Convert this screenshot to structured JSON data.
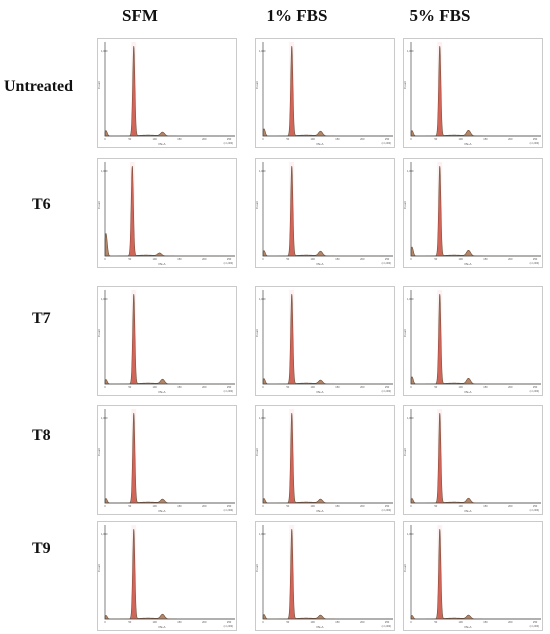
{
  "columns": [
    "SFM",
    "1% FBS",
    "5% FBS"
  ],
  "rows": [
    "Untreated",
    "T6",
    "T7",
    "T8",
    "T9"
  ],
  "axis_text": {
    "y_label": "Count",
    "x_label": "PE-A",
    "x_max_label": "(x 1,000)",
    "x_ticks": [
      "0",
      "50",
      "100",
      "150",
      "200",
      "250"
    ],
    "y_top_label": "1,000"
  },
  "colors": {
    "peak": "#b2876a",
    "peak_edge": "#6e4a35",
    "gate": "#e84b4b",
    "frame": "#4a4a4a"
  },
  "chart_data": {
    "type": "area",
    "title": "",
    "xlabel": "PE-A",
    "ylabel": "Count",
    "xlim": [
      0,
      262
    ],
    "panels": [
      {
        "row": "Untreated",
        "column": "SFM",
        "g1_position": 58,
        "g1_height": 1.0,
        "g2_height": 0.04,
        "debris": 0.06
      },
      {
        "row": "Untreated",
        "column": "1% FBS",
        "g1_position": 58,
        "g1_height": 1.0,
        "g2_height": 0.05,
        "debris": 0.08
      },
      {
        "row": "Untreated",
        "column": "5% FBS",
        "g1_position": 58,
        "g1_height": 1.0,
        "g2_height": 0.06,
        "debris": 0.06
      },
      {
        "row": "T6",
        "column": "SFM",
        "g1_position": 55,
        "g1_height": 1.0,
        "g2_height": 0.03,
        "debris": 0.25
      },
      {
        "row": "T6",
        "column": "1% FBS",
        "g1_position": 58,
        "g1_height": 1.0,
        "g2_height": 0.05,
        "debris": 0.06
      },
      {
        "row": "T6",
        "column": "5% FBS",
        "g1_position": 58,
        "g1_height": 1.0,
        "g2_height": 0.06,
        "debris": 0.1
      },
      {
        "row": "T7",
        "column": "SFM",
        "g1_position": 58,
        "g1_height": 1.0,
        "g2_height": 0.05,
        "debris": 0.05
      },
      {
        "row": "T7",
        "column": "1% FBS",
        "g1_position": 58,
        "g1_height": 1.0,
        "g2_height": 0.04,
        "debris": 0.06
      },
      {
        "row": "T7",
        "column": "5% FBS",
        "g1_position": 58,
        "g1_height": 1.0,
        "g2_height": 0.06,
        "debris": 0.08
      },
      {
        "row": "T8",
        "column": "SFM",
        "g1_position": 58,
        "g1_height": 1.0,
        "g2_height": 0.04,
        "debris": 0.05
      },
      {
        "row": "T8",
        "column": "1% FBS",
        "g1_position": 58,
        "g1_height": 1.0,
        "g2_height": 0.04,
        "debris": 0.05
      },
      {
        "row": "T8",
        "column": "5% FBS",
        "g1_position": 58,
        "g1_height": 1.0,
        "g2_height": 0.05,
        "debris": 0.05
      },
      {
        "row": "T9",
        "column": "SFM",
        "g1_position": 58,
        "g1_height": 1.0,
        "g2_height": 0.05,
        "debris": 0.04
      },
      {
        "row": "T9",
        "column": "1% FBS",
        "g1_position": 58,
        "g1_height": 1.0,
        "g2_height": 0.04,
        "debris": 0.05
      },
      {
        "row": "T9",
        "column": "5% FBS",
        "g1_position": 58,
        "g1_height": 1.0,
        "g2_height": 0.04,
        "debris": 0.04
      }
    ]
  }
}
